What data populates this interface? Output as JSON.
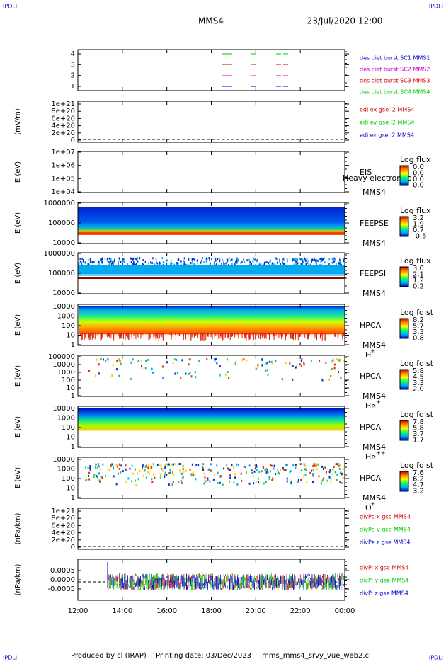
{
  "header": {
    "corner_left": "IPDLI",
    "corner_right": "IPDLI",
    "spacecraft": "MMS4",
    "date": "23/Jul/2020 12:00"
  },
  "panels": [
    {
      "yticks": [
        "1",
        "2",
        "3",
        "4"
      ],
      "legend": [
        {
          "text": "des dist burst SC1 MMS1",
          "color": "#0000cc"
        },
        {
          "text": "des dist burst SC2 MMS2",
          "color": "#cc00cc"
        },
        {
          "text": "des dist burst SC3 MMS3",
          "color": "#cc0000"
        },
        {
          "text": "des dist burst SC4 MMS4",
          "color": "#00cc00"
        }
      ]
    },
    {
      "ylabel": "(mV/m)",
      "yticks": [
        "0",
        "2e+20",
        "4e+20",
        "6e+20",
        "8e+20",
        "1e+21"
      ],
      "legend": [
        {
          "text": "edi ex gse l2 MMS4",
          "color": "#cc0000"
        },
        {
          "text": "edi ey gse l2 MMS4",
          "color": "#00cc00"
        },
        {
          "text": "edi ez gse l2 MMS4",
          "color": "#0000cc"
        }
      ]
    },
    {
      "ylabel": "E (eV)",
      "yticks": [
        "1e+04",
        "1e+05",
        "1e+06",
        "1e+07"
      ],
      "side_labels": [
        "EIS",
        "MMS4"
      ],
      "overlay": "Heavy electron to",
      "colorbar": {
        "title": "Log flux",
        "ticks": [
          "0.0",
          "0.0",
          "0.0",
          "0.0"
        ]
      }
    },
    {
      "ylabel": "E (eV)",
      "yticks": [
        "10000",
        "100000",
        "1000000"
      ],
      "side_labels": [
        "FEEPSE",
        "MMS4"
      ],
      "colorbar": {
        "title": "Log flux",
        "ticks": [
          "3.2",
          "1.9",
          "0.7",
          "-0.5"
        ]
      }
    },
    {
      "ylabel": "E (eV)",
      "yticks": [
        "10000",
        "100000",
        "1000000"
      ],
      "side_labels": [
        "FEEPSI",
        "MMS4"
      ],
      "colorbar": {
        "title": "Log flux",
        "ticks": [
          "3.0",
          "2.1",
          "1.2",
          "0.2"
        ]
      }
    },
    {
      "ylabel": "E (eV)",
      "yticks": [
        "1",
        "10",
        "100",
        "1000",
        "10000"
      ],
      "side_labels": [
        "HPCA",
        "MMS4"
      ],
      "ion": {
        "base": "H",
        "charge": "+"
      },
      "colorbar": {
        "title": "Log fdist",
        "ticks": [
          "8.2",
          "5.7",
          "3.3",
          "0.8"
        ]
      }
    },
    {
      "ylabel": "E (eV)",
      "yticks": [
        "1",
        "10",
        "100",
        "1000",
        "10000",
        "100000"
      ],
      "side_labels": [
        "HPCA",
        "MMS4"
      ],
      "ion": {
        "base": "He",
        "charge": "+"
      },
      "colorbar": {
        "title": "Log fdist",
        "ticks": [
          "5.8",
          "4.5",
          "3.3",
          "2.0"
        ]
      }
    },
    {
      "ylabel": "E (eV)",
      "yticks": [
        "1",
        "10",
        "100",
        "1000",
        "10000"
      ],
      "side_labels": [
        "HPCA",
        "MMS4"
      ],
      "ion": {
        "base": "He",
        "charge": "++"
      },
      "colorbar": {
        "title": "Log fdist",
        "ticks": [
          "7.8",
          "5.8",
          "3.7",
          "1.7"
        ]
      }
    },
    {
      "ylabel": "E (eV)",
      "yticks": [
        "1",
        "10",
        "100",
        "1000",
        "10000"
      ],
      "side_labels": [
        "HPCA",
        "MMS4"
      ],
      "ion": {
        "base": "O",
        "charge": "+"
      },
      "colorbar": {
        "title": "Log fdist",
        "ticks": [
          "7.6",
          "6.2",
          "4.7",
          "3.2"
        ]
      }
    },
    {
      "ylabel": "(nPa/km)",
      "yticks": [
        "0",
        "2e+20",
        "4e+20",
        "6e+20",
        "8e+20",
        "1e+21"
      ],
      "legend": [
        {
          "text": "divPe x gse MMS4",
          "color": "#cc0000"
        },
        {
          "text": "divPe y gse MMS4",
          "color": "#00cc00"
        },
        {
          "text": "divPe z gse MMS4",
          "color": "#0000cc"
        }
      ]
    },
    {
      "ylabel": "(nPa/km)",
      "yticks": [
        "-0.0005",
        "0.0000",
        "0.0005"
      ],
      "legend": [
        {
          "text": "divPi x gse MMS4",
          "color": "#cc0000"
        },
        {
          "text": "divPi y gse MMS4",
          "color": "#00cc00"
        },
        {
          "text": "divPi z gse MMS4",
          "color": "#0000cc"
        }
      ]
    }
  ],
  "xticks": [
    "12:00",
    "14:00",
    "16:00",
    "18:00",
    "20:00",
    "22:00",
    "00:00"
  ],
  "footer": {
    "producer": "Produced by cl (IRAP)",
    "printing_date": "Printing date: 03/Dec/2023",
    "file": "mms_mms4_srvy_vue_web2.cl"
  }
}
